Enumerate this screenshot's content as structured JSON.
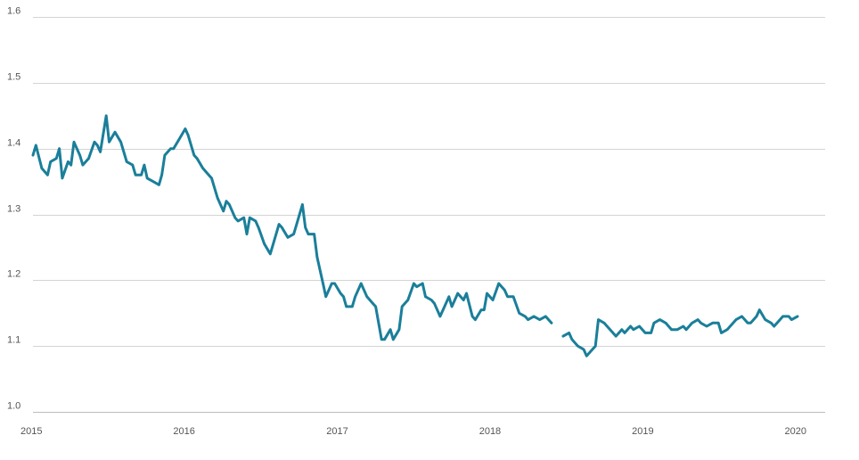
{
  "chart_data": {
    "type": "line",
    "title": "",
    "xlabel": "",
    "ylabel": "",
    "ylim": [
      1.0,
      1.6
    ],
    "xlim": [
      "2015-01-01",
      "2020-03-08"
    ],
    "grid": "horizontal",
    "y_ticks": [
      "1.0",
      "1.1",
      "1.2",
      "1.3",
      "1.4",
      "1.5",
      "1.6"
    ],
    "x_ticks": [
      {
        "label": "2015",
        "date": "2015-01-01"
      },
      {
        "label": "2016",
        "date": "2016-01-01"
      },
      {
        "label": "2017",
        "date": "2017-01-01"
      },
      {
        "label": "2018",
        "date": "2018-01-01"
      },
      {
        "label": "2019",
        "date": "2019-01-01"
      },
      {
        "label": "2020",
        "date": "2020-01-01"
      }
    ],
    "colors": {
      "line": "#1a7f9a",
      "grid": "#d4d4d4",
      "text": "#555555"
    },
    "series": [
      {
        "segments": [
          [
            [
              "2015-01-01",
              1.39
            ],
            [
              "2015-01-08",
              1.405
            ],
            [
              "2015-01-22",
              1.37
            ],
            [
              "2015-02-05",
              1.36
            ],
            [
              "2015-02-12",
              1.38
            ],
            [
              "2015-02-26",
              1.385
            ],
            [
              "2015-03-05",
              1.4
            ],
            [
              "2015-03-12",
              1.355
            ],
            [
              "2015-03-26",
              1.38
            ],
            [
              "2015-04-02",
              1.375
            ],
            [
              "2015-04-09",
              1.41
            ],
            [
              "2015-04-23",
              1.39
            ],
            [
              "2015-04-30",
              1.375
            ],
            [
              "2015-05-14",
              1.385
            ],
            [
              "2015-05-28",
              1.41
            ],
            [
              "2015-06-04",
              1.405
            ],
            [
              "2015-06-11",
              1.395
            ],
            [
              "2015-06-25",
              1.45
            ],
            [
              "2015-07-02",
              1.41
            ],
            [
              "2015-07-16",
              1.425
            ],
            [
              "2015-07-30",
              1.41
            ],
            [
              "2015-08-13",
              1.38
            ],
            [
              "2015-08-27",
              1.375
            ],
            [
              "2015-09-03",
              1.36
            ],
            [
              "2015-09-17",
              1.36
            ],
            [
              "2015-09-24",
              1.375
            ],
            [
              "2015-10-01",
              1.355
            ],
            [
              "2015-10-15",
              1.35
            ],
            [
              "2015-10-29",
              1.345
            ],
            [
              "2015-11-05",
              1.36
            ],
            [
              "2015-11-12",
              1.39
            ],
            [
              "2015-11-26",
              1.4
            ],
            [
              "2015-12-03",
              1.4
            ],
            [
              "2015-12-17",
              1.415
            ],
            [
              "2015-12-31",
              1.43
            ],
            [
              "2016-01-07",
              1.42
            ],
            [
              "2016-01-21",
              1.39
            ],
            [
              "2016-01-28",
              1.385
            ],
            [
              "2016-02-11",
              1.37
            ],
            [
              "2016-02-25",
              1.36
            ],
            [
              "2016-03-03",
              1.355
            ],
            [
              "2016-03-17",
              1.325
            ],
            [
              "2016-03-31",
              1.305
            ],
            [
              "2016-04-07",
              1.32
            ],
            [
              "2016-04-14",
              1.315
            ],
            [
              "2016-04-28",
              1.295
            ],
            [
              "2016-05-05",
              1.29
            ],
            [
              "2016-05-19",
              1.295
            ],
            [
              "2016-05-26",
              1.27
            ],
            [
              "2016-06-02",
              1.295
            ],
            [
              "2016-06-16",
              1.29
            ],
            [
              "2016-06-23",
              1.28
            ],
            [
              "2016-07-07",
              1.255
            ],
            [
              "2016-07-21",
              1.24
            ],
            [
              "2016-07-28",
              1.255
            ],
            [
              "2016-08-11",
              1.285
            ],
            [
              "2016-08-18",
              1.28
            ],
            [
              "2016-09-01",
              1.265
            ],
            [
              "2016-09-15",
              1.27
            ],
            [
              "2016-09-22",
              1.285
            ],
            [
              "2016-10-06",
              1.315
            ],
            [
              "2016-10-13",
              1.28
            ],
            [
              "2016-10-20",
              1.27
            ],
            [
              "2016-11-03",
              1.27
            ],
            [
              "2016-11-10",
              1.235
            ],
            [
              "2016-11-24",
              1.195
            ],
            [
              "2016-12-01",
              1.175
            ],
            [
              "2016-12-15",
              1.195
            ],
            [
              "2016-12-22",
              1.195
            ],
            [
              "2017-01-05",
              1.18
            ],
            [
              "2017-01-12",
              1.175
            ],
            [
              "2017-01-19",
              1.16
            ],
            [
              "2017-02-02",
              1.16
            ],
            [
              "2017-02-09",
              1.175
            ],
            [
              "2017-02-23",
              1.195
            ],
            [
              "2017-03-09",
              1.175
            ],
            [
              "2017-03-23",
              1.165
            ],
            [
              "2017-03-30",
              1.16
            ],
            [
              "2017-04-13",
              1.11
            ],
            [
              "2017-04-20",
              1.11
            ],
            [
              "2017-05-04",
              1.125
            ],
            [
              "2017-05-11",
              1.11
            ],
            [
              "2017-05-25",
              1.125
            ],
            [
              "2017-06-01",
              1.16
            ],
            [
              "2017-06-15",
              1.17
            ],
            [
              "2017-06-29",
              1.195
            ],
            [
              "2017-07-06",
              1.19
            ],
            [
              "2017-07-20",
              1.195
            ],
            [
              "2017-07-27",
              1.175
            ],
            [
              "2017-08-10",
              1.17
            ],
            [
              "2017-08-17",
              1.165
            ],
            [
              "2017-08-31",
              1.145
            ],
            [
              "2017-09-07",
              1.155
            ],
            [
              "2017-09-21",
              1.175
            ],
            [
              "2017-09-28",
              1.16
            ],
            [
              "2017-10-12",
              1.18
            ],
            [
              "2017-10-26",
              1.17
            ],
            [
              "2017-11-02",
              1.18
            ],
            [
              "2017-11-16",
              1.145
            ],
            [
              "2017-11-23",
              1.14
            ],
            [
              "2017-12-07",
              1.155
            ],
            [
              "2017-12-14",
              1.155
            ],
            [
              "2017-12-21",
              1.18
            ],
            [
              "2018-01-04",
              1.17
            ],
            [
              "2018-01-18",
              1.195
            ],
            [
              "2018-02-01",
              1.185
            ],
            [
              "2018-02-08",
              1.175
            ],
            [
              "2018-02-22",
              1.175
            ],
            [
              "2018-03-08",
              1.15
            ],
            [
              "2018-03-22",
              1.145
            ],
            [
              "2018-03-29",
              1.14
            ],
            [
              "2018-04-12",
              1.145
            ],
            [
              "2018-04-26",
              1.14
            ],
            [
              "2018-05-10",
              1.145
            ],
            [
              "2018-05-24",
              1.135
            ]
          ],
          [
            [
              "2018-06-21",
              1.115
            ],
            [
              "2018-07-05",
              1.12
            ],
            [
              "2018-07-12",
              1.11
            ],
            [
              "2018-07-26",
              1.1
            ],
            [
              "2018-08-09",
              1.095
            ],
            [
              "2018-08-16",
              1.085
            ],
            [
              "2018-08-30",
              1.095
            ],
            [
              "2018-09-06",
              1.1
            ],
            [
              "2018-09-13",
              1.14
            ],
            [
              "2018-09-27",
              1.135
            ],
            [
              "2018-10-04",
              1.13
            ],
            [
              "2018-10-18",
              1.12
            ],
            [
              "2018-10-25",
              1.115
            ],
            [
              "2018-11-08",
              1.125
            ],
            [
              "2018-11-15",
              1.12
            ],
            [
              "2018-11-29",
              1.13
            ],
            [
              "2018-12-06",
              1.125
            ],
            [
              "2018-12-20",
              1.13
            ],
            [
              "2019-01-03",
              1.12
            ],
            [
              "2019-01-17",
              1.12
            ],
            [
              "2019-01-24",
              1.135
            ],
            [
              "2019-02-07",
              1.14
            ],
            [
              "2019-02-21",
              1.135
            ],
            [
              "2019-03-07",
              1.125
            ],
            [
              "2019-03-21",
              1.125
            ],
            [
              "2019-04-04",
              1.13
            ],
            [
              "2019-04-11",
              1.125
            ],
            [
              "2019-04-25",
              1.135
            ],
            [
              "2019-05-09",
              1.14
            ],
            [
              "2019-05-16",
              1.135
            ],
            [
              "2019-05-30",
              1.13
            ],
            [
              "2019-06-13",
              1.135
            ],
            [
              "2019-06-27",
              1.135
            ],
            [
              "2019-07-04",
              1.12
            ],
            [
              "2019-07-18",
              1.125
            ],
            [
              "2019-07-25",
              1.13
            ],
            [
              "2019-08-08",
              1.14
            ],
            [
              "2019-08-22",
              1.145
            ],
            [
              "2019-09-05",
              1.135
            ],
            [
              "2019-09-12",
              1.135
            ],
            [
              "2019-09-26",
              1.145
            ],
            [
              "2019-10-03",
              1.155
            ],
            [
              "2019-10-17",
              1.14
            ],
            [
              "2019-10-31",
              1.135
            ],
            [
              "2019-11-07",
              1.13
            ],
            [
              "2019-11-21",
              1.14
            ],
            [
              "2019-11-28",
              1.145
            ],
            [
              "2019-12-12",
              1.145
            ],
            [
              "2019-12-19",
              1.14
            ],
            [
              "2020-01-02",
              1.145
            ]
          ]
        ]
      }
    ]
  }
}
